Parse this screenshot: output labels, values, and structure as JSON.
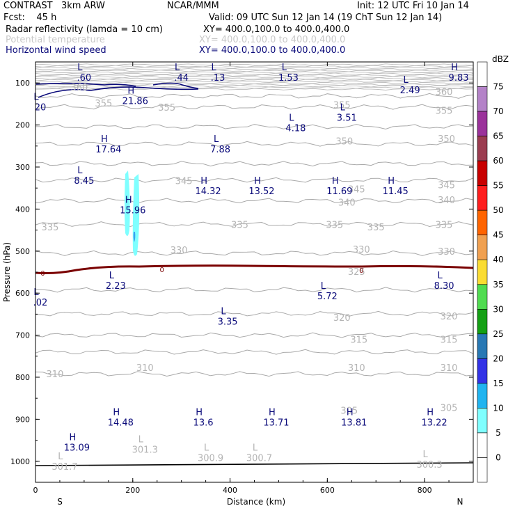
{
  "header": {
    "model": "CONTRAST   3km ARW",
    "org": "NCAR/MMM",
    "init": "Init: 12 UTC Fri 10 Jan 14",
    "fcst": "Fcst:    45 h",
    "valid": "Valid: 09 UTC Sun 12 Jan 14 (19 ChT Sun 12 Jan 14)",
    "fields": [
      {
        "name": "Radar reflectivity (lamda = 10 cm)",
        "xy": "XY= 400.0,100.0 to 400.0,400.0",
        "color": "#000000"
      },
      {
        "name": "Potential temperature",
        "xy": "XY= 400.0,100.0 to 400.0,400.0",
        "color": "#c8c8c8"
      },
      {
        "name": "Horizontal wind speed",
        "xy": "XY= 400.0,100.0 to 400.0,400.0",
        "color": "#0a0a7a"
      }
    ]
  },
  "chart_data": {
    "type": "cross-section",
    "xlabel": "Distance (km)",
    "ylabel": "Pressure (hPa)",
    "xlim": [
      0,
      900
    ],
    "ylim": [
      1050,
      50
    ],
    "xticks": [
      0,
      200,
      400,
      600,
      800
    ],
    "yticks": [
      100,
      200,
      300,
      400,
      500,
      600,
      700,
      800,
      900,
      1000
    ],
    "x_end_labels": {
      "left": "S",
      "right": "N"
    },
    "colorbar": {
      "unit": "dBZ",
      "levels": [
        0,
        5,
        10,
        15,
        20,
        25,
        30,
        35,
        40,
        45,
        50,
        55,
        60,
        65,
        70,
        75
      ],
      "colors": [
        "#ffffff",
        "#ffffff",
        "#7fffff",
        "#20b4f0",
        "#3232e6",
        "#2878b4",
        "#14a014",
        "#50dc50",
        "#fadc32",
        "#f0a050",
        "#ff6400",
        "#ff1e1e",
        "#c80000",
        "#9b3c50",
        "#9b329b",
        "#b482c8",
        "#ffffff"
      ]
    },
    "theta_labels": [
      {
        "x": 90,
        "p": 110,
        "text": "360"
      },
      {
        "x": 840,
        "p": 120,
        "text": "360"
      },
      {
        "x": 140,
        "p": 148,
        "text": "355"
      },
      {
        "x": 270,
        "p": 158,
        "text": "355"
      },
      {
        "x": 630,
        "p": 152,
        "text": "355"
      },
      {
        "x": 840,
        "p": 165,
        "text": "355"
      },
      {
        "x": 635,
        "p": 238,
        "text": "350"
      },
      {
        "x": 845,
        "p": 232,
        "text": "350"
      },
      {
        "x": 305,
        "p": 332,
        "text": "345"
      },
      {
        "x": 660,
        "p": 352,
        "text": "345"
      },
      {
        "x": 845,
        "p": 342,
        "text": "345"
      },
      {
        "x": 640,
        "p": 384,
        "text": "340"
      },
      {
        "x": 845,
        "p": 378,
        "text": "340"
      },
      {
        "x": 30,
        "p": 442,
        "text": "335"
      },
      {
        "x": 420,
        "p": 437,
        "text": "335"
      },
      {
        "x": 615,
        "p": 437,
        "text": "335"
      },
      {
        "x": 700,
        "p": 442,
        "text": "335"
      },
      {
        "x": 840,
        "p": 437,
        "text": "335"
      },
      {
        "x": 295,
        "p": 497,
        "text": "330"
      },
      {
        "x": 670,
        "p": 495,
        "text": "330"
      },
      {
        "x": 845,
        "p": 500,
        "text": "330"
      },
      {
        "x": 660,
        "p": 548,
        "text": "325"
      },
      {
        "x": 850,
        "p": 654,
        "text": "320"
      },
      {
        "x": 630,
        "p": 658,
        "text": "320"
      },
      {
        "x": 665,
        "p": 710,
        "text": "315"
      },
      {
        "x": 850,
        "p": 710,
        "text": "315"
      },
      {
        "x": 225,
        "p": 777,
        "text": "310"
      },
      {
        "x": 660,
        "p": 777,
        "text": "310"
      },
      {
        "x": 850,
        "p": 777,
        "text": "310"
      },
      {
        "x": 40,
        "p": 792,
        "text": "310"
      },
      {
        "x": 645,
        "p": 879,
        "text": "305"
      },
      {
        "x": 850,
        "p": 872,
        "text": "305"
      }
    ],
    "extrema": [
      {
        "x": 100,
        "p": 70,
        "type": "L",
        "value": ".60"
      },
      {
        "x": 300,
        "p": 70,
        "type": "L",
        "value": ".44"
      },
      {
        "x": 375,
        "p": 70,
        "type": "L",
        "value": ".13"
      },
      {
        "x": 520,
        "p": 70,
        "type": "L",
        "value": "1.53"
      },
      {
        "x": 870,
        "p": 70,
        "type": "H",
        "value": "9.83"
      },
      {
        "x": 770,
        "p": 100,
        "type": "L",
        "value": "2.49"
      },
      {
        "x": 10,
        "p": 140,
        "type": "L",
        "value": "20"
      },
      {
        "x": 205,
        "p": 125,
        "type": "H",
        "value": "21.86"
      },
      {
        "x": 640,
        "p": 165,
        "type": "L",
        "value": "3.51"
      },
      {
        "x": 535,
        "p": 190,
        "type": "L",
        "value": "4.18"
      },
      {
        "x": 150,
        "p": 240,
        "type": "H",
        "value": "17.64"
      },
      {
        "x": 380,
        "p": 240,
        "type": "L",
        "value": "7.88"
      },
      {
        "x": 100,
        "p": 315,
        "type": "L",
        "value": "8.45"
      },
      {
        "x": 355,
        "p": 340,
        "type": "H",
        "value": "14.32"
      },
      {
        "x": 465,
        "p": 340,
        "type": "H",
        "value": "13.52"
      },
      {
        "x": 625,
        "p": 340,
        "type": "H",
        "value": "11.69"
      },
      {
        "x": 740,
        "p": 340,
        "type": "H",
        "value": "11.45"
      },
      {
        "x": 200,
        "p": 385,
        "type": "H",
        "value": "15.96"
      },
      {
        "x": 165,
        "p": 565,
        "type": "L",
        "value": "2.23"
      },
      {
        "x": 840,
        "p": 565,
        "type": "L",
        "value": "8.30"
      },
      {
        "x": 10,
        "p": 605,
        "type": "L",
        "value": ".02"
      },
      {
        "x": 600,
        "p": 590,
        "type": "L",
        "value": "5.72"
      },
      {
        "x": 395,
        "p": 650,
        "type": "L",
        "value": "3.35"
      },
      {
        "x": 175,
        "p": 890,
        "type": "H",
        "value": "14.48"
      },
      {
        "x": 345,
        "p": 890,
        "type": "H",
        "value": "13.6"
      },
      {
        "x": 495,
        "p": 890,
        "type": "H",
        "value": "13.71"
      },
      {
        "x": 655,
        "p": 890,
        "type": "H",
        "value": "13.81"
      },
      {
        "x": 820,
        "p": 890,
        "type": "H",
        "value": "13.22"
      },
      {
        "x": 85,
        "p": 950,
        "type": "H",
        "value": "13.09"
      }
    ],
    "theta_extrema": [
      {
        "x": 225,
        "p": 955,
        "type": "L",
        "value": "301.3"
      },
      {
        "x": 360,
        "p": 975,
        "type": "L",
        "value": "300.9"
      },
      {
        "x": 460,
        "p": 975,
        "type": "L",
        "value": "300.7"
      },
      {
        "x": 60,
        "p": 995,
        "type": "L",
        "value": "301.7"
      },
      {
        "x": 810,
        "p": 990,
        "type": "L",
        "value": "300.3"
      }
    ],
    "zero_contour_labels": [
      {
        "x": 15,
        "p": 552,
        "text": "0"
      },
      {
        "x": 260,
        "p": 543,
        "text": "0"
      },
      {
        "x": 670,
        "p": 545,
        "text": "0"
      }
    ]
  }
}
